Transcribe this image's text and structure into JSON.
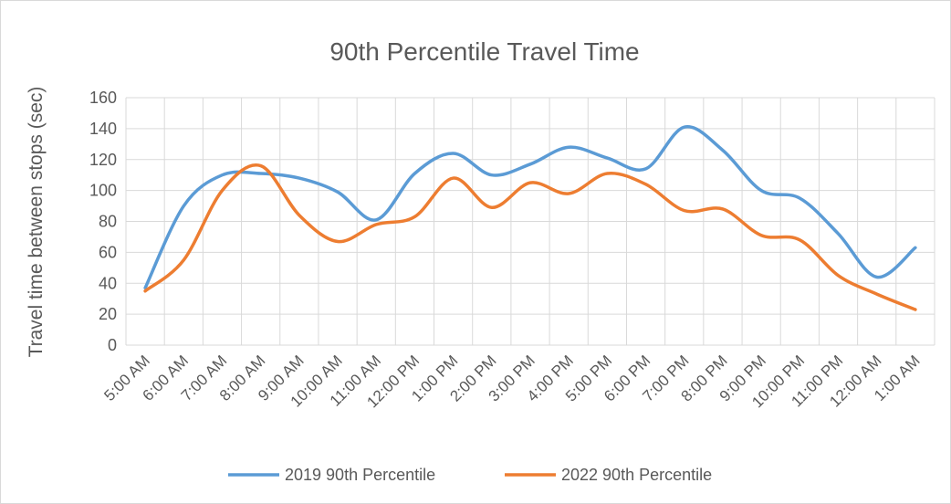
{
  "chart_data": {
    "type": "line",
    "title": "90th Percentile Travel Time",
    "y_label": "Travel time between stops (sec)",
    "categories": [
      "5:00 AM",
      "6:00 AM",
      "7:00 AM",
      "8:00 AM",
      "9:00 AM",
      "10:00 AM",
      "11:00 AM",
      "12:00 PM",
      "1:00 PM",
      "2:00 PM",
      "3:00 PM",
      "4:00 PM",
      "5:00 PM",
      "6:00 PM",
      "7:00 PM",
      "8:00 PM",
      "9:00 PM",
      "10:00 PM",
      "11:00 PM",
      "12:00 AM",
      "1:00 AM"
    ],
    "series": [
      {
        "name": "2019 90th Percentile",
        "color": "#5b9bd5",
        "values": [
          37,
          90,
          110,
          111,
          108,
          99,
          81,
          111,
          124,
          110,
          117,
          128,
          121,
          114,
          141,
          126,
          100,
          95,
          72,
          44,
          63
        ]
      },
      {
        "name": "2022 90th Percentile",
        "color": "#ed7d31",
        "values": [
          35,
          55,
          100,
          116,
          84,
          67,
          78,
          83,
          108,
          89,
          105,
          98,
          111,
          104,
          87,
          88,
          71,
          68,
          45,
          33,
          23
        ]
      }
    ],
    "ylim": [
      0,
      160
    ],
    "yticks": [
      0,
      20,
      40,
      60,
      80,
      100,
      120,
      140,
      160
    ],
    "grid": true,
    "smooth": true,
    "legend": "bottom"
  }
}
